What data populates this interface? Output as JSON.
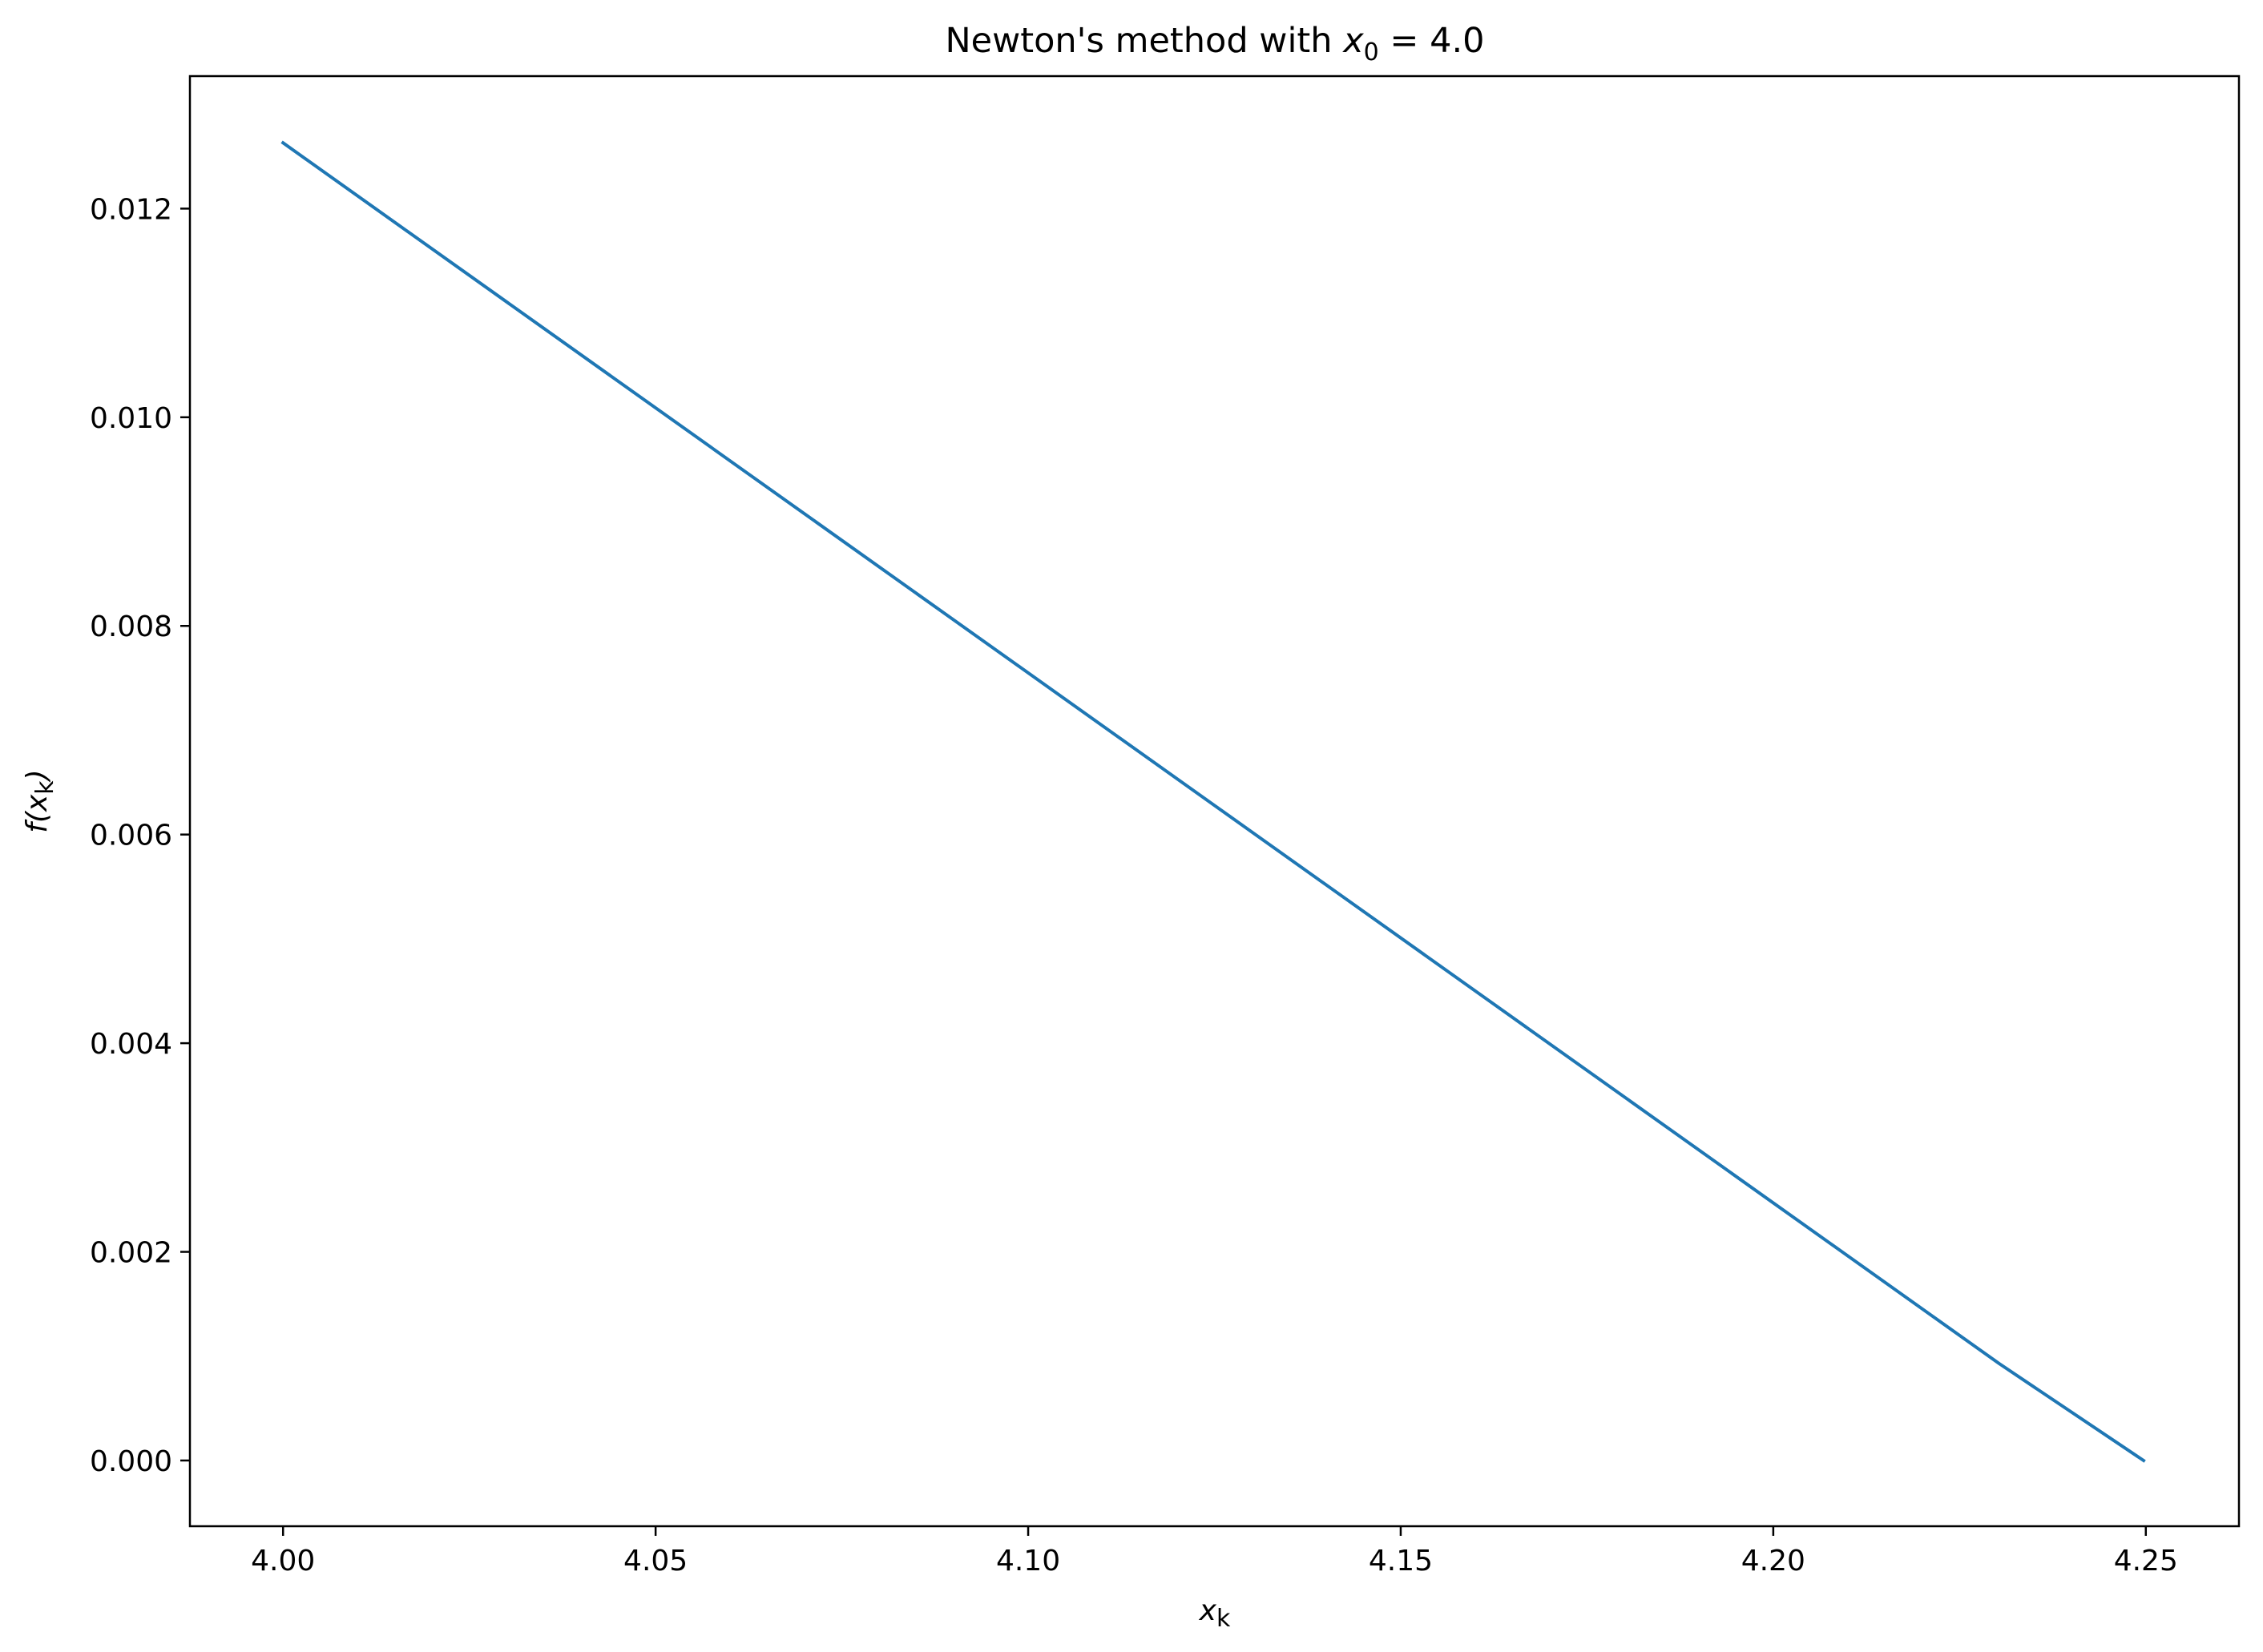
{
  "chart_data": {
    "type": "line",
    "title": {
      "prefix": "Newton's method with ",
      "var": "x",
      "sub": "0",
      "suffix": " = 4.0"
    },
    "xlabel": {
      "var": "x",
      "sub": "k"
    },
    "ylabel": {
      "prefix": "f(",
      "var": "x",
      "sub": "k",
      "suffix": ")"
    },
    "xlim": [
      3.9875,
      4.2625
    ],
    "ylim": [
      -0.00063,
      0.01327
    ],
    "xticks": [
      4.0,
      4.05,
      4.1,
      4.15,
      4.2,
      4.25
    ],
    "xtick_labels": [
      "4.00",
      "4.05",
      "4.10",
      "4.15",
      "4.20",
      "4.25"
    ],
    "yticks": [
      0.0,
      0.002,
      0.004,
      0.006,
      0.008,
      0.01,
      0.012
    ],
    "ytick_labels": [
      "0.000",
      "0.002",
      "0.004",
      "0.006",
      "0.008",
      "0.010",
      "0.012"
    ],
    "grid": false,
    "legend": "none",
    "series": [
      {
        "color": "#1f77b4",
        "x": [
          4.0,
          4.2303,
          4.2497
        ],
        "y": [
          0.01263,
          0.00093,
          0.0
        ]
      }
    ]
  }
}
